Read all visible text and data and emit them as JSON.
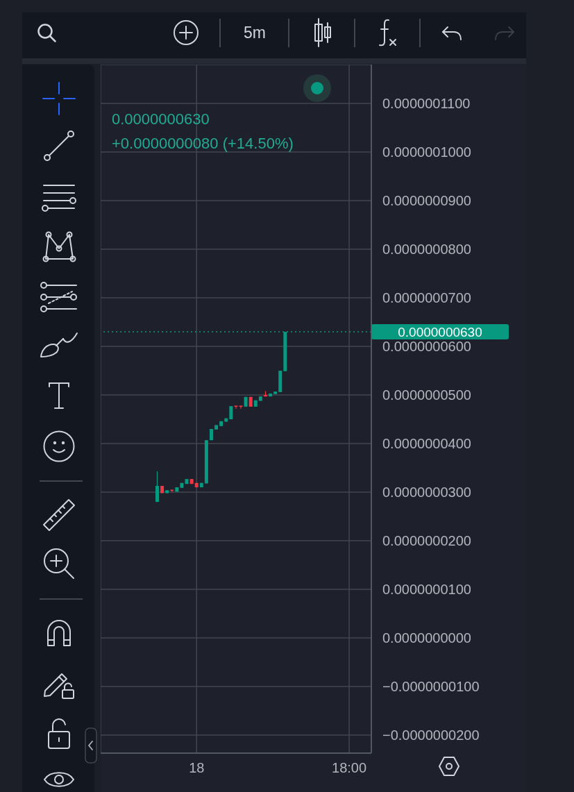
{
  "chart_data": {
    "type": "candlestick",
    "categories": [
      null,
      null,
      null,
      null,
      null,
      null,
      null,
      null,
      null,
      null,
      null,
      null,
      null,
      null,
      null,
      null,
      null,
      null,
      null,
      "18",
      null,
      null,
      null,
      null,
      null,
      null,
      null,
      null,
      null,
      null,
      null,
      null,
      null,
      null,
      null,
      null,
      null,
      null,
      null,
      null,
      null,
      null,
      null,
      null,
      null,
      null,
      null,
      null,
      null,
      null,
      "18:00",
      null,
      null,
      null,
      null
    ],
    "ohlc": [
      null,
      null,
      null,
      null,
      null,
      null,
      null,
      null,
      null,
      null,
      null,
      [
        2.8e-08,
        3.43e-08,
        2.8e-08,
        3.13e-08
      ],
      [
        3.13e-08,
        3.13e-08,
        2.98e-08,
        2.98e-08
      ],
      [
        2.98e-08,
        3.04e-08,
        2.98e-08,
        3.04e-08
      ],
      [
        3.05e-08,
        3.05e-08,
        3e-08,
        3.03e-08
      ],
      [
        3.01e-08,
        3.1e-08,
        3.01e-08,
        3.1e-08
      ],
      [
        3.09e-08,
        3.19e-08,
        3.09e-08,
        3.19e-08
      ],
      [
        3.17e-08,
        3.27e-08,
        3.17e-08,
        3.27e-08
      ],
      [
        3.27e-08,
        3.27e-08,
        3.17e-08,
        3.17e-08
      ],
      [
        3.19e-08,
        3.19e-08,
        3.1e-08,
        3.1e-08
      ],
      [
        3.1e-08,
        3.19e-08,
        3.1e-08,
        3.19e-08
      ],
      [
        3.18e-08,
        4.07e-08,
        3.18e-08,
        4.07e-08
      ],
      [
        4.07e-08,
        4.3e-08,
        4.07e-08,
        4.3e-08
      ],
      [
        4.29e-08,
        4.38e-08,
        4.29e-08,
        4.38e-08
      ],
      [
        4.36e-08,
        4.46e-08,
        4.36e-08,
        4.46e-08
      ],
      [
        4.45e-08,
        4.52e-08,
        4.45e-08,
        4.52e-08
      ],
      [
        4.5e-08,
        4.77e-08,
        4.5e-08,
        4.77e-08
      ],
      [
        4.78e-08,
        4.78e-08,
        4.72e-08,
        4.76e-08
      ],
      [
        4.78e-08,
        4.78e-08,
        4.72e-08,
        4.76e-08
      ],
      [
        4.76e-08,
        4.96e-08,
        4.76e-08,
        4.96e-08
      ],
      [
        4.96e-08,
        4.96e-08,
        4.76e-08,
        4.76e-08
      ],
      [
        4.76e-08,
        4.89e-08,
        4.76e-08,
        4.89e-08
      ],
      [
        4.88e-08,
        4.97e-08,
        4.88e-08,
        4.97e-08
      ],
      [
        5e-08,
        5.08e-08,
        4.97e-08,
        4.97e-08
      ],
      [
        4.97e-08,
        5.03e-08,
        4.97e-08,
        5.03e-08
      ],
      [
        5.02e-08,
        5.07e-08,
        5.02e-08,
        5.07e-08
      ],
      [
        5.06e-08,
        5.5e-08,
        5.06e-08,
        5.5e-08
      ],
      [
        5.49e-08,
        6.3e-08,
        5.49e-08,
        6.3e-08
      ],
      null,
      null,
      null,
      null,
      null,
      null,
      null,
      null,
      null,
      null,
      null,
      null,
      null,
      null,
      null,
      null,
      null
    ],
    "colors": [
      null,
      null,
      null,
      null,
      null,
      null,
      null,
      null,
      null,
      null,
      null,
      "#089981",
      "#f23645",
      "#089981",
      "#f23645",
      "#089981",
      "#089981",
      "#089981",
      "#f23645",
      "#f23645",
      "#089981",
      "#089981",
      "#089981",
      "#089981",
      "#089981",
      "#089981",
      "#089981",
      "#f23645",
      "#f23645",
      "#089981",
      "#f23645",
      "#089981",
      "#089981",
      "#f23645",
      "#089981",
      "#089981",
      "#089981",
      "#089981",
      null,
      null,
      null,
      null,
      null,
      null,
      null,
      null,
      null,
      null,
      null,
      null,
      null,
      null,
      null,
      null,
      null
    ],
    "ylim": [
      -2.37e-08,
      1.18e-07
    ],
    "yticks": [
      {
        "value": 1.1e-07,
        "label": "0.0000001100"
      },
      {
        "value": 1e-07,
        "label": "0.0000001000"
      },
      {
        "value": 9e-08,
        "label": "0.0000000900"
      },
      {
        "value": 8e-08,
        "label": "0.0000000800"
      },
      {
        "value": 7e-08,
        "label": "0.0000000700"
      },
      {
        "value": 6e-08,
        "label": "0.0000000600"
      },
      {
        "value": 5e-08,
        "label": "0.0000000500"
      },
      {
        "value": 4e-08,
        "label": "0.0000000400"
      },
      {
        "value": 3e-08,
        "label": "0.0000000300"
      },
      {
        "value": 2e-08,
        "label": "0.0000000200"
      },
      {
        "value": 1e-08,
        "label": "0.0000000100"
      },
      {
        "value": 0,
        "label": "0.0000000000"
      },
      {
        "value": -1e-08,
        "label": "−0.0000000100"
      },
      {
        "value": -2e-08,
        "label": "−0.0000000200"
      }
    ],
    "grid": true,
    "ref_lines": [
      {
        "axis": "y",
        "value": 6.3e-08,
        "label": "0.0000000630",
        "color": "#089981",
        "line_style": "dotted"
      }
    ],
    "annotations": [
      "0.0000000630",
      "+0.0000000080 (+14.50%)",
      "5m"
    ]
  }
}
